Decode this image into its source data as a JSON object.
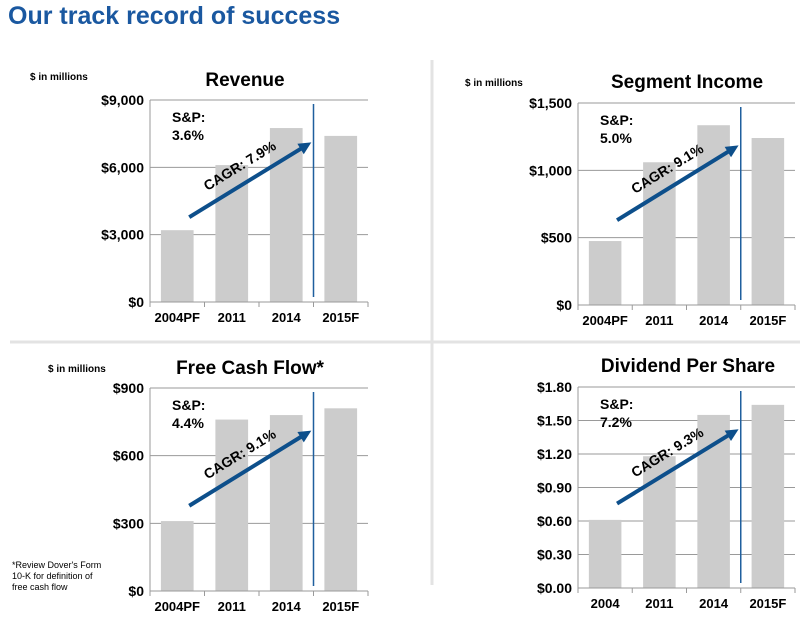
{
  "page_title": "Our track record of success",
  "footnote": "*Review Dover's Form 10-K for definition of free cash flow",
  "colors": {
    "title": "#1a58a0",
    "bar": "#cccccc",
    "arrow": "#0d4f8b",
    "grid": "#9a9a9a",
    "divider": "#e3e3e3"
  },
  "chart_data": [
    {
      "type": "bar",
      "title": "Revenue",
      "units_label": "$ in millions",
      "categories": [
        "2004PF",
        "2011",
        "2014",
        "2015F"
      ],
      "values": [
        3200,
        6100,
        7750,
        7400
      ],
      "yticks": [
        0,
        3000,
        6000,
        9000
      ],
      "ytick_labels": [
        "$0",
        "$3,000",
        "$6,000",
        "$9,000"
      ],
      "ylim": [
        0,
        9000
      ],
      "sp_label": "S&P:",
      "sp_value": "3.6%",
      "cagr_label": "CAGR: 7.9%"
    },
    {
      "type": "bar",
      "title": "Segment Income",
      "units_label": "$ in millions",
      "categories": [
        "2004PF",
        "2011",
        "2014",
        "2015F"
      ],
      "values": [
        475,
        1060,
        1335,
        1240
      ],
      "yticks": [
        0,
        500,
        1000,
        1500
      ],
      "ytick_labels": [
        "$0",
        "$500",
        "$1,000",
        "$1,500"
      ],
      "ylim": [
        0,
        1500
      ],
      "sp_label": "S&P:",
      "sp_value": "5.0%",
      "cagr_label": "CAGR: 9.1%"
    },
    {
      "type": "bar",
      "title": "Free Cash Flow*",
      "units_label": "$ in millions",
      "categories": [
        "2004PF",
        "2011",
        "2014",
        "2015F"
      ],
      "values": [
        310,
        760,
        780,
        810
      ],
      "yticks": [
        0,
        300,
        600,
        900
      ],
      "ytick_labels": [
        "$0",
        "$300",
        "$600",
        "$900"
      ],
      "ylim": [
        0,
        900
      ],
      "sp_label": "S&P:",
      "sp_value": "4.4%",
      "cagr_label": "CAGR: 9.1%"
    },
    {
      "type": "bar",
      "title": "Dividend Per Share",
      "units_label": "",
      "categories": [
        "2004",
        "2011",
        "2014",
        "2015F"
      ],
      "values": [
        0.61,
        1.18,
        1.55,
        1.64
      ],
      "yticks": [
        0,
        0.3,
        0.6,
        0.9,
        1.2,
        1.5,
        1.8
      ],
      "ytick_labels": [
        "$0.00",
        "$0.30",
        "$0.60",
        "$0.90",
        "$1.20",
        "$1.50",
        "$1.80"
      ],
      "ylim": [
        0,
        1.8
      ],
      "sp_label": "S&P:",
      "sp_value": "7.2%",
      "cagr_label": "CAGR: 9.3%"
    }
  ]
}
